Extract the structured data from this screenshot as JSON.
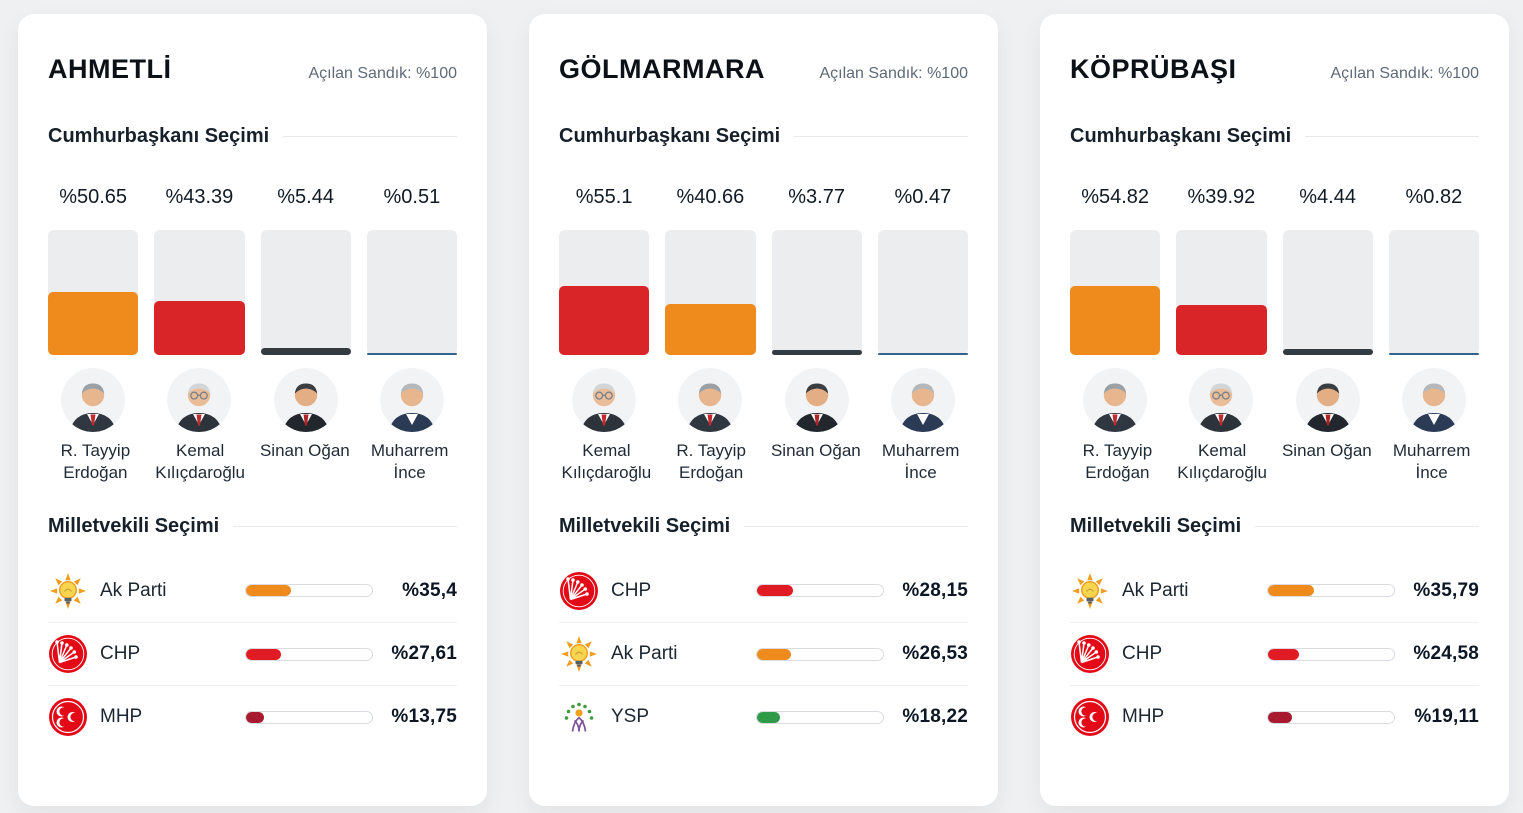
{
  "labels": {
    "presidential_title": "Cumhurbaşkanı Seçimi",
    "parliamentary_title": "Milletvekili Seçimi"
  },
  "colors": {
    "page_bg": "#eef0f1",
    "card_bg": "#ffffff",
    "bar_track": "#ebedee",
    "divider": "#eef0f1",
    "text_dark": "#101a24",
    "text_gray": "#5e6a78",
    "erdogan_orange": "#ef8b1d",
    "kilicdaroglu_red": "#d92528",
    "ogan_charcoal": "#333b43",
    "ince_navy": "#33618d",
    "akp_orange": "#ef8b1d",
    "chp_red": "#e11b24",
    "mhp_crimson": "#a81a30",
    "ysp_green": "#2f9a47"
  },
  "avatars": {
    "erdogan": {
      "skin": "#e7b68e",
      "hair": "#9aa0a4",
      "suit": "#2f3741",
      "tie": "#c22a2e",
      "glasses": false
    },
    "kilicdaroglu": {
      "skin": "#e9bd97",
      "hair": "#d3d6d8",
      "suit": "#2c333b",
      "tie": "#c22a2e",
      "glasses": true
    },
    "ogan": {
      "skin": "#e3ae84",
      "hair": "#3a3d41",
      "suit": "#22272d",
      "tie": "#b02328",
      "glasses": false
    },
    "ince": {
      "skin": "#e7b68e",
      "hair": "#b4b8bb",
      "suit": "#2b3a55",
      "tie": null,
      "glasses": false
    }
  },
  "logos": {
    "akp": {
      "ray": "#f09c1e",
      "bulb": "#f8d54e",
      "base": "#585f66"
    },
    "chp": {
      "bg": "#e30a17"
    },
    "mhp": {
      "bg": "#e30a17"
    },
    "ysp": {
      "leaf": "#3f9b3c",
      "sun": "#f0a01e",
      "figure": "#7b519f"
    }
  },
  "cards": [
    {
      "title": "AHMETLİ",
      "opened_ballots": "Açılan Sandık: %100",
      "candidates": [
        {
          "name": "R. Tayyip Erdoğan",
          "percent_label": "%50.65",
          "value": 50.65,
          "color": "#ef8b1d",
          "avatar": "erdogan"
        },
        {
          "name": "Kemal Kılıçdaroğlu",
          "percent_label": "%43.39",
          "value": 43.39,
          "color": "#d92528",
          "avatar": "kilicdaroglu"
        },
        {
          "name": "Sinan Oğan",
          "percent_label": "%5.44",
          "value": 5.44,
          "color": "#333b43",
          "avatar": "ogan"
        },
        {
          "name": "Muharrem İnce",
          "percent_label": "%0.51",
          "value": 0.51,
          "color": "#33618d",
          "avatar": "ince"
        }
      ],
      "parties": [
        {
          "name": "Ak Parti",
          "percent_label": "%35,4",
          "value": 35.4,
          "color": "#ef8b1d",
          "logo": "akp"
        },
        {
          "name": "CHP",
          "percent_label": "%27,61",
          "value": 27.61,
          "color": "#e11b24",
          "logo": "chp"
        },
        {
          "name": "MHP",
          "percent_label": "%13,75",
          "value": 13.75,
          "color": "#a81a30",
          "logo": "mhp"
        }
      ]
    },
    {
      "title": "GÖLMARMARA",
      "opened_ballots": "Açılan Sandık: %100",
      "candidates": [
        {
          "name": "Kemal Kılıçdaroğlu",
          "percent_label": "%55.1",
          "value": 55.1,
          "color": "#d92528",
          "avatar": "kilicdaroglu"
        },
        {
          "name": "R. Tayyip Erdoğan",
          "percent_label": "%40.66",
          "value": 40.66,
          "color": "#ef8b1d",
          "avatar": "erdogan"
        },
        {
          "name": "Sinan Oğan",
          "percent_label": "%3.77",
          "value": 3.77,
          "color": "#333b43",
          "avatar": "ogan"
        },
        {
          "name": "Muharrem İnce",
          "percent_label": "%0.47",
          "value": 0.47,
          "color": "#33618d",
          "avatar": "ince"
        }
      ],
      "parties": [
        {
          "name": "CHP",
          "percent_label": "%28,15",
          "value": 28.15,
          "color": "#e11b24",
          "logo": "chp"
        },
        {
          "name": "Ak Parti",
          "percent_label": "%26,53",
          "value": 26.53,
          "color": "#ef8b1d",
          "logo": "akp"
        },
        {
          "name": "YSP",
          "percent_label": "%18,22",
          "value": 18.22,
          "color": "#2f9a47",
          "logo": "ysp"
        }
      ]
    },
    {
      "title": "KÖPRÜBAŞI",
      "opened_ballots": "Açılan Sandık: %100",
      "candidates": [
        {
          "name": "R. Tayyip Erdoğan",
          "percent_label": "%54.82",
          "value": 54.82,
          "color": "#ef8b1d",
          "avatar": "erdogan"
        },
        {
          "name": "Kemal Kılıçdaroğlu",
          "percent_label": "%39.92",
          "value": 39.92,
          "color": "#d92528",
          "avatar": "kilicdaroglu"
        },
        {
          "name": "Sinan Oğan",
          "percent_label": "%4.44",
          "value": 4.44,
          "color": "#333b43",
          "avatar": "ogan"
        },
        {
          "name": "Muharrem İnce",
          "percent_label": "%0.82",
          "value": 0.82,
          "color": "#33618d",
          "avatar": "ince"
        }
      ],
      "parties": [
        {
          "name": "Ak Parti",
          "percent_label": "%35,79",
          "value": 35.79,
          "color": "#ef8b1d",
          "logo": "akp"
        },
        {
          "name": "CHP",
          "percent_label": "%24,58",
          "value": 24.58,
          "color": "#e11b24",
          "logo": "chp"
        },
        {
          "name": "MHP",
          "percent_label": "%19,11",
          "value": 19.11,
          "color": "#a81a30",
          "logo": "mhp"
        }
      ]
    }
  ],
  "chart_data": [
    {
      "district": "AHMETLİ",
      "opened_ballots_pct": 100,
      "presidential": {
        "type": "bar",
        "categories": [
          "R. Tayyip Erdoğan",
          "Kemal Kılıçdaroğlu",
          "Sinan Oğan",
          "Muharrem İnce"
        ],
        "values": [
          50.65,
          43.39,
          5.44,
          0.51
        ],
        "title": "Cumhurbaşkanı Seçimi",
        "ylim": [
          0,
          100
        ],
        "unit": "%"
      },
      "parliamentary": {
        "type": "bar",
        "categories": [
          "Ak Parti",
          "CHP",
          "MHP"
        ],
        "values": [
          35.4,
          27.61,
          13.75
        ],
        "title": "Milletvekili Seçimi",
        "ylim": [
          0,
          100
        ],
        "unit": "%"
      }
    },
    {
      "district": "GÖLMARMARA",
      "opened_ballots_pct": 100,
      "presidential": {
        "type": "bar",
        "categories": [
          "Kemal Kılıçdaroğlu",
          "R. Tayyip Erdoğan",
          "Sinan Oğan",
          "Muharrem İnce"
        ],
        "values": [
          55.1,
          40.66,
          3.77,
          0.47
        ],
        "title": "Cumhurbaşkanı Seçimi",
        "ylim": [
          0,
          100
        ],
        "unit": "%"
      },
      "parliamentary": {
        "type": "bar",
        "categories": [
          "CHP",
          "Ak Parti",
          "YSP"
        ],
        "values": [
          28.15,
          26.53,
          18.22
        ],
        "title": "Milletvekili Seçimi",
        "ylim": [
          0,
          100
        ],
        "unit": "%"
      }
    },
    {
      "district": "KÖPRÜBAŞI",
      "opened_ballots_pct": 100,
      "presidential": {
        "type": "bar",
        "categories": [
          "R. Tayyip Erdoğan",
          "Kemal Kılıçdaroğlu",
          "Sinan Oğan",
          "Muharrem İnce"
        ],
        "values": [
          54.82,
          39.92,
          4.44,
          0.82
        ],
        "title": "Cumhurbaşkanı Seçimi",
        "ylim": [
          0,
          100
        ],
        "unit": "%"
      },
      "parliamentary": {
        "type": "bar",
        "categories": [
          "Ak Parti",
          "CHP",
          "MHP"
        ],
        "values": [
          35.79,
          24.58,
          19.11
        ],
        "title": "Milletvekili Seçimi",
        "ylim": [
          0,
          100
        ],
        "unit": "%"
      }
    }
  ]
}
